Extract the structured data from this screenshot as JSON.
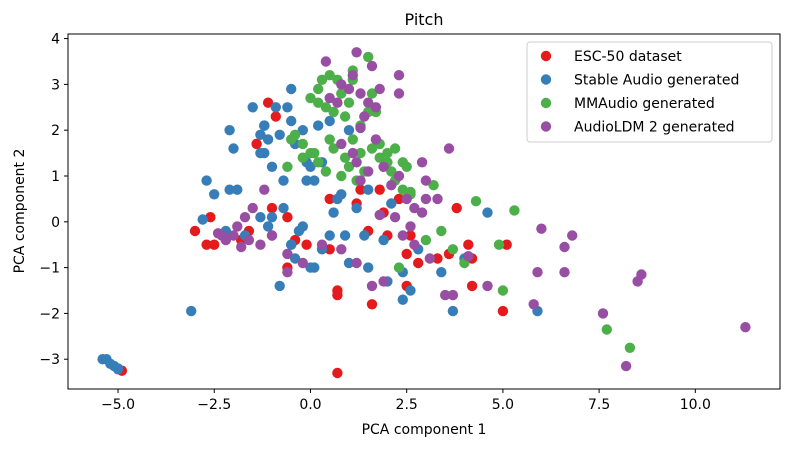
{
  "chart_data": {
    "type": "scatter",
    "title": "Pitch",
    "xlabel": "PCA component 1",
    "ylabel": "PCA component 2",
    "xlim": [
      -6.3,
      12.2
    ],
    "ylim": [
      -3.65,
      4.1
    ],
    "xticks": [
      -5.0,
      -2.5,
      0.0,
      2.5,
      5.0,
      7.5,
      10.0
    ],
    "xtick_labels": [
      "−5.0",
      "−2.5",
      "0.0",
      "2.5",
      "5.0",
      "7.5",
      "10.0"
    ],
    "yticks": [
      -3,
      -2,
      -1,
      0,
      1,
      2,
      3,
      4
    ],
    "ytick_labels": [
      "−3",
      "−2",
      "−1",
      "0",
      "1",
      "2",
      "3",
      "4"
    ],
    "grid": false,
    "legend_position": "top-right",
    "series": [
      {
        "name": "ESC-50 dataset",
        "color": "#e41a1c",
        "points": [
          [
            -1.1,
            2.6
          ],
          [
            -0.9,
            2.3
          ],
          [
            -1.4,
            1.7
          ],
          [
            -2.6,
            0.1
          ],
          [
            -3.0,
            -0.2
          ],
          [
            -2.7,
            -0.5
          ],
          [
            -2.5,
            -0.5
          ],
          [
            -1.8,
            -0.4
          ],
          [
            -1.6,
            -0.2
          ],
          [
            -1.0,
            0.3
          ],
          [
            -0.6,
            0.1
          ],
          [
            -0.4,
            -0.4
          ],
          [
            -0.6,
            -1.0
          ],
          [
            -0.1,
            -0.5
          ],
          [
            0.5,
            0.5
          ],
          [
            0.5,
            -0.6
          ],
          [
            0.7,
            -1.5
          ],
          [
            0.7,
            -1.6
          ],
          [
            0.7,
            -3.3
          ],
          [
            1.2,
            0.4
          ],
          [
            1.3,
            0.7
          ],
          [
            1.5,
            -0.2
          ],
          [
            1.6,
            -1.8
          ],
          [
            1.8,
            0.7
          ],
          [
            1.9,
            0.2
          ],
          [
            2.0,
            -0.3
          ],
          [
            2.3,
            0.5
          ],
          [
            2.5,
            -0.7
          ],
          [
            2.5,
            -1.4
          ],
          [
            2.6,
            -0.3
          ],
          [
            2.8,
            -0.9
          ],
          [
            3.3,
            -0.8
          ],
          [
            3.6,
            -0.7
          ],
          [
            3.8,
            0.3
          ],
          [
            4.1,
            -0.5
          ],
          [
            4.2,
            -0.8
          ],
          [
            4.2,
            -1.4
          ],
          [
            5.1,
            -0.5
          ],
          [
            5.0,
            -1.95
          ],
          [
            -4.9,
            -3.25
          ]
        ]
      },
      {
        "name": "Stable Audio generated",
        "color": "#377eb8",
        "points": [
          [
            -5.4,
            -3.0
          ],
          [
            -5.3,
            -3.0
          ],
          [
            -5.2,
            -3.1
          ],
          [
            -5.1,
            -3.15
          ],
          [
            -5.0,
            -3.2
          ],
          [
            -5.0,
            -3.22
          ],
          [
            -3.1,
            -1.95
          ],
          [
            -1.5,
            2.5
          ],
          [
            -1.2,
            2.1
          ],
          [
            -1.1,
            1.8
          ],
          [
            -0.9,
            2.5
          ],
          [
            -0.6,
            2.5
          ],
          [
            -0.5,
            2.9
          ],
          [
            -0.5,
            2.2
          ],
          [
            -2.1,
            2.0
          ],
          [
            -2.0,
            1.6
          ],
          [
            -1.3,
            1.5
          ],
          [
            -1.2,
            1.5
          ],
          [
            -1.0,
            1.2
          ],
          [
            -0.8,
            1.9
          ],
          [
            -0.7,
            0.9
          ],
          [
            -0.4,
            1.7
          ],
          [
            -0.2,
            2.0
          ],
          [
            -0.1,
            1.3
          ],
          [
            -0.1,
            0.9
          ],
          [
            0.1,
            0.9
          ],
          [
            -2.7,
            0.9
          ],
          [
            -2.5,
            0.6
          ],
          [
            -2.1,
            0.7
          ],
          [
            -1.9,
            0.7
          ],
          [
            -1.3,
            0.1
          ],
          [
            -1.0,
            0.1
          ],
          [
            -0.7,
            0.3
          ],
          [
            -0.5,
            -0.5
          ],
          [
            -0.3,
            -0.2
          ],
          [
            -0.2,
            -0.1
          ],
          [
            0.0,
            -1.0
          ],
          [
            0.1,
            -1.0
          ],
          [
            0.2,
            2.1
          ],
          [
            0.3,
            1.3
          ],
          [
            0.5,
            -0.3
          ],
          [
            0.6,
            0.2
          ],
          [
            0.7,
            0.5
          ],
          [
            0.8,
            0.6
          ],
          [
            1.0,
            2.0
          ],
          [
            1.2,
            0.3
          ],
          [
            1.4,
            -0.3
          ],
          [
            1.5,
            0.7
          ],
          [
            1.9,
            -0.4
          ],
          [
            2.1,
            0.4
          ],
          [
            2.4,
            -1.1
          ],
          [
            2.4,
            -1.7
          ],
          [
            2.6,
            -1.5
          ],
          [
            2.8,
            -0.6
          ],
          [
            3.4,
            -1.1
          ],
          [
            3.7,
            -1.95
          ],
          [
            4.0,
            -0.8
          ],
          [
            4.6,
            0.2
          ],
          [
            5.9,
            -1.95
          ],
          [
            -2.8,
            0.05
          ],
          [
            -2.2,
            -0.2
          ],
          [
            -1.7,
            -0.3
          ],
          [
            -1.1,
            -0.1
          ],
          [
            -0.8,
            -1.4
          ],
          [
            -0.5,
            -0.5
          ],
          [
            -0.4,
            -0.8
          ],
          [
            0.3,
            -0.6
          ],
          [
            1.0,
            -0.9
          ],
          [
            1.5,
            -1.0
          ],
          [
            2.0,
            -1.3
          ],
          [
            0.5,
            2.2
          ],
          [
            0.0,
            1.2
          ],
          [
            0.9,
            -0.3
          ],
          [
            -1.3,
            1.9
          ],
          [
            -1.2,
            2.1
          ]
        ]
      },
      {
        "name": "MMAudio generated",
        "color": "#4daf4a",
        "points": [
          [
            0.5,
            3.2
          ],
          [
            0.3,
            3.1
          ],
          [
            0.2,
            2.9
          ],
          [
            0.7,
            3.1
          ],
          [
            0.8,
            2.8
          ],
          [
            1.0,
            2.6
          ],
          [
            1.1,
            3.1
          ],
          [
            1.1,
            3.3
          ],
          [
            1.5,
            3.6
          ],
          [
            1.6,
            2.8
          ],
          [
            1.7,
            2.4
          ],
          [
            0.4,
            2.5
          ],
          [
            0.2,
            2.6
          ],
          [
            0.0,
            2.7
          ],
          [
            0.6,
            2.4
          ],
          [
            0.9,
            2.3
          ],
          [
            1.3,
            2.1
          ],
          [
            1.5,
            2.4
          ],
          [
            -0.5,
            1.8
          ],
          [
            -0.4,
            1.9
          ],
          [
            -0.2,
            1.7
          ],
          [
            0.0,
            1.5
          ],
          [
            0.2,
            1.3
          ],
          [
            0.4,
            1.1
          ],
          [
            0.5,
            1.8
          ],
          [
            0.6,
            1.6
          ],
          [
            0.9,
            1.4
          ],
          [
            1.1,
            1.8
          ],
          [
            1.3,
            1.5
          ],
          [
            1.6,
            1.6
          ],
          [
            1.8,
            1.7
          ],
          [
            2.0,
            1.3
          ],
          [
            2.1,
            1.1
          ],
          [
            2.2,
            0.9
          ],
          [
            2.4,
            1.3
          ],
          [
            2.5,
            1.2
          ],
          [
            2.6,
            0.6
          ],
          [
            0.8,
            1.0
          ],
          [
            1.0,
            1.2
          ],
          [
            1.2,
            0.9
          ],
          [
            1.4,
            1.1
          ],
          [
            1.8,
            1.4
          ],
          [
            2.0,
            1.5
          ],
          [
            2.2,
            1.6
          ],
          [
            2.4,
            0.7
          ],
          [
            2.6,
            0.65
          ],
          [
            -0.6,
            1.2
          ],
          [
            -0.2,
            1.4
          ],
          [
            0.1,
            1.5
          ],
          [
            3.2,
            0.8
          ],
          [
            4.3,
            0.45
          ],
          [
            5.3,
            0.25
          ],
          [
            3.0,
            -0.4
          ],
          [
            3.4,
            -0.2
          ],
          [
            3.7,
            -0.6
          ],
          [
            4.0,
            -0.9
          ],
          [
            4.9,
            -0.5
          ],
          [
            5.0,
            -1.5
          ],
          [
            7.7,
            -2.35
          ],
          [
            8.3,
            -2.75
          ],
          [
            2.3,
            -1.0
          ]
        ]
      },
      {
        "name": "AudioLDM 2 generated",
        "color": "#984ea3",
        "points": [
          [
            0.4,
            3.5
          ],
          [
            1.2,
            3.7
          ],
          [
            1.6,
            3.4
          ],
          [
            2.3,
            3.2
          ],
          [
            2.3,
            2.8
          ],
          [
            1.1,
            3.2
          ],
          [
            0.8,
            3.0
          ],
          [
            1.0,
            2.9
          ],
          [
            1.3,
            2.8
          ],
          [
            1.5,
            2.6
          ],
          [
            1.8,
            2.9
          ],
          [
            0.5,
            2.7
          ],
          [
            0.7,
            2.6
          ],
          [
            1.7,
            2.5
          ],
          [
            1.4,
            2.3
          ],
          [
            1.3,
            2.05
          ],
          [
            0.8,
            1.7
          ],
          [
            1.1,
            1.5
          ],
          [
            1.2,
            1.3
          ],
          [
            1.3,
            0.9
          ],
          [
            1.5,
            1.1
          ],
          [
            1.7,
            1.8
          ],
          [
            1.9,
            1.2
          ],
          [
            2.1,
            0.8
          ],
          [
            2.3,
            1.0
          ],
          [
            2.5,
            0.5
          ],
          [
            2.7,
            0.3
          ],
          [
            2.9,
            1.3
          ],
          [
            3.0,
            0.9
          ],
          [
            3.3,
            0.5
          ],
          [
            3.6,
            1.6
          ],
          [
            -1.2,
            0.7
          ],
          [
            -1.5,
            0.3
          ],
          [
            -1.7,
            0.1
          ],
          [
            -1.9,
            -0.1
          ],
          [
            -2.0,
            -0.3
          ],
          [
            -2.2,
            -0.4
          ],
          [
            -2.3,
            -0.3
          ],
          [
            -1.8,
            -0.55
          ],
          [
            -1.6,
            -0.4
          ],
          [
            -1.3,
            -0.5
          ],
          [
            -1.0,
            -0.3
          ],
          [
            -0.6,
            -0.7
          ],
          [
            -0.2,
            -0.9
          ],
          [
            0.3,
            -0.5
          ],
          [
            0.8,
            -0.6
          ],
          [
            1.2,
            -0.9
          ],
          [
            1.6,
            -1.4
          ],
          [
            1.9,
            -1.3
          ],
          [
            2.4,
            -0.3
          ],
          [
            2.6,
            -0.1
          ],
          [
            2.9,
            0.2
          ],
          [
            3.1,
            -0.8
          ],
          [
            3.5,
            -1.6
          ],
          [
            3.7,
            -1.6
          ],
          [
            4.6,
            -1.4
          ],
          [
            5.8,
            -1.8
          ],
          [
            5.9,
            -1.1
          ],
          [
            6.0,
            -0.15
          ],
          [
            6.6,
            -0.55
          ],
          [
            6.6,
            -1.1
          ],
          [
            6.8,
            -0.3
          ],
          [
            7.6,
            -2.0
          ],
          [
            8.2,
            -3.15
          ],
          [
            8.5,
            -1.3
          ],
          [
            8.6,
            -1.15
          ],
          [
            11.3,
            -2.3
          ],
          [
            4.1,
            -0.75
          ],
          [
            3.0,
            0.5
          ],
          [
            2.7,
            -0.5
          ],
          [
            1.8,
            0.15
          ],
          [
            2.2,
            0.1
          ],
          [
            -2.4,
            -0.25
          ],
          [
            -1.0,
            -0.3
          ],
          [
            -0.6,
            -1.1
          ]
        ]
      }
    ]
  }
}
